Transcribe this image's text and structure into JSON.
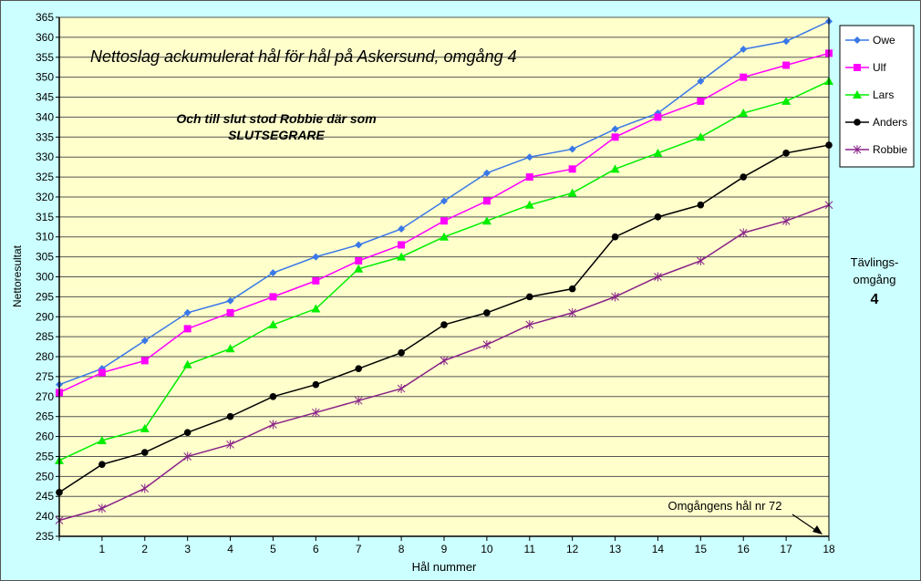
{
  "chart_data": {
    "type": "line",
    "title": "Nettoslag ackumulerat hål för hål på Askersund, omgång 4",
    "subtitle_lines": [
      "Och till slut stod Robbie där som",
      "SLUTSEGRARE"
    ],
    "xlabel": "Hål nummer",
    "ylabel": "Nettoresultat",
    "x": [
      0,
      1,
      2,
      3,
      4,
      5,
      6,
      7,
      8,
      9,
      10,
      11,
      12,
      13,
      14,
      15,
      16,
      17,
      18
    ],
    "x_tick_labels": [
      "",
      "1",
      "2",
      "3",
      "4",
      "5",
      "6",
      "7",
      "8",
      "9",
      "10",
      "11",
      "12",
      "13",
      "14",
      "15",
      "16",
      "17",
      "18"
    ],
    "ylim": [
      235,
      365
    ],
    "ytick_step": 5,
    "grid": true,
    "legend_position": "right",
    "side_label": [
      "Tävlings-",
      "omgång",
      "4"
    ],
    "annotation": "Omgångens hål nr 72",
    "colors": {
      "background": "#ccffff",
      "plot_background": "#ffffcc"
    },
    "series": [
      {
        "name": "Owe",
        "color": "#3a78e8",
        "marker": "diamond",
        "values": [
          273,
          277,
          284,
          291,
          294,
          301,
          305,
          308,
          312,
          319,
          326,
          330,
          332,
          337,
          341,
          349,
          357,
          359,
          364
        ]
      },
      {
        "name": "Ulf",
        "color": "#ff00ff",
        "marker": "square",
        "values": [
          271,
          276,
          279,
          287,
          291,
          295,
          299,
          304,
          308,
          314,
          319,
          325,
          327,
          335,
          340,
          344,
          350,
          353,
          356
        ]
      },
      {
        "name": "Lars",
        "color": "#00ee00",
        "marker": "triangle",
        "values": [
          254,
          259,
          262,
          278,
          282,
          288,
          292,
          302,
          305,
          310,
          314,
          318,
          321,
          327,
          331,
          335,
          341,
          344,
          349
        ]
      },
      {
        "name": "Anders",
        "color": "#000000",
        "marker": "circle",
        "values": [
          246,
          253,
          256,
          261,
          265,
          270,
          273,
          277,
          281,
          288,
          291,
          295,
          297,
          310,
          315,
          318,
          325,
          331,
          333
        ]
      },
      {
        "name": "Robbie",
        "color": "#882288",
        "marker": "star",
        "values": [
          239,
          242,
          247,
          255,
          258,
          263,
          266,
          269,
          272,
          279,
          283,
          288,
          291,
          295,
          300,
          304,
          311,
          314,
          318
        ]
      }
    ]
  }
}
